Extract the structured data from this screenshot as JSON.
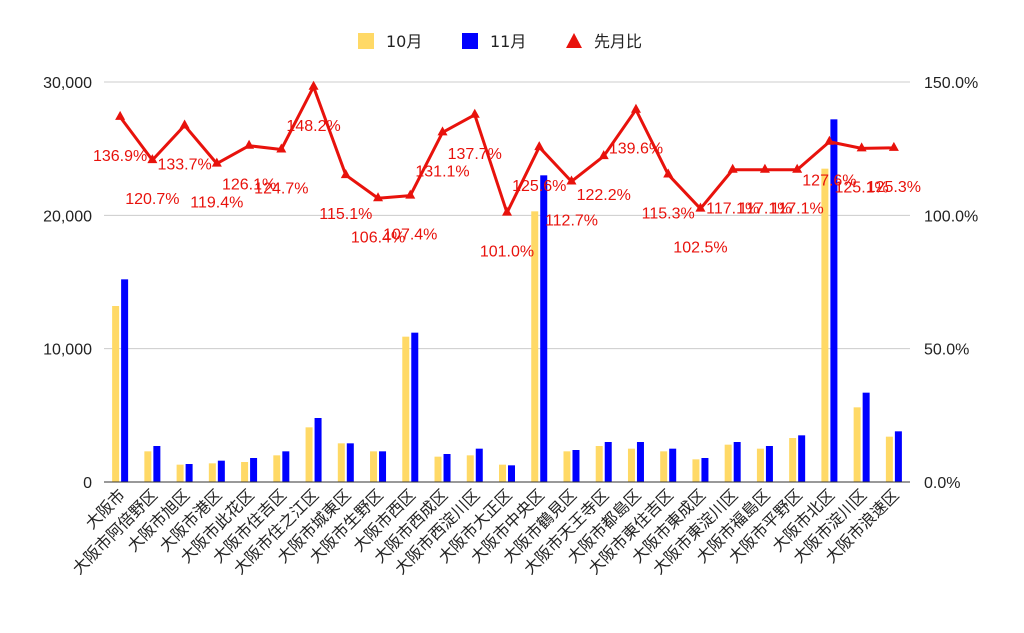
{
  "chart_data": {
    "type": "bar",
    "categories": [
      "大阪市",
      "大阪市阿倍野区",
      "大阪市旭区",
      "大阪市港区",
      "大阪市此花区",
      "大阪市住吉区",
      "大阪市住之江区",
      "大阪市城東区",
      "大阪市生野区",
      "大阪市西区",
      "大阪市西成区",
      "大阪市西淀川区",
      "大阪市大正区",
      "大阪市中央区",
      "大阪市鶴見区",
      "大阪市天王寺区",
      "大阪市都島区",
      "大阪市東住吉区",
      "大阪市東成区",
      "大阪市東淀川区",
      "大阪市福島区",
      "大阪市平野区",
      "大阪市北区",
      "大阪市淀川区",
      "大阪市浪速区"
    ],
    "series": [
      {
        "name": "10月",
        "type": "bar",
        "axis": "left",
        "color": "#ffd966",
        "values": [
          13200,
          2300,
          1300,
          1400,
          1500,
          2000,
          4100,
          2900,
          2300,
          10900,
          1900,
          2000,
          1300,
          20300,
          2300,
          2700,
          2500,
          2300,
          1700,
          2800,
          2500,
          3300,
          23500,
          5600,
          3400
        ]
      },
      {
        "name": "11月",
        "type": "bar",
        "axis": "left",
        "color": "#0000ff",
        "values": [
          15200,
          2700,
          1350,
          1600,
          1800,
          2300,
          4800,
          2900,
          2300,
          11200,
          2100,
          2500,
          1250,
          23000,
          2400,
          3000,
          3000,
          2500,
          1800,
          3000,
          2700,
          3500,
          27200,
          6700,
          3800
        ]
      },
      {
        "name": "先月比",
        "type": "line",
        "axis": "right",
        "color": "#e8120c",
        "values": [
          136.9,
          120.7,
          133.7,
          119.4,
          126.1,
          124.7,
          148.2,
          115.1,
          106.4,
          107.4,
          131.1,
          137.7,
          101.0,
          125.6,
          112.7,
          122.2,
          139.6,
          115.3,
          102.5,
          117.1,
          117.1,
          117.1,
          127.6,
          125.1,
          125.3
        ],
        "labels": [
          "136.9%",
          "120.7%",
          "133.7%",
          "119.4%",
          "126.1%",
          "124.7%",
          "148.2%",
          "115.1%",
          "106.4%",
          "107.4%",
          "131.1%",
          "137.7%",
          "101.0%",
          "125.6%",
          "112.7%",
          "122.2%",
          "139.6%",
          "115.3%",
          "102.5%",
          "117.1%",
          "117.1%",
          "117.1%",
          "127.6%",
          "125.1%",
          "125.3%"
        ]
      }
    ],
    "left_axis": {
      "min": 0,
      "max": 30000,
      "ticks": [
        0,
        10000,
        20000,
        30000
      ],
      "tick_labels": [
        "0",
        "10,000",
        "20,000",
        "30,000"
      ]
    },
    "right_axis": {
      "min": 0,
      "max": 150,
      "ticks": [
        0,
        50,
        100,
        150
      ],
      "tick_labels": [
        "0.0%",
        "50.0%",
        "100.0%",
        "150.0%"
      ]
    },
    "title": "",
    "xlabel": "",
    "ylabel": "",
    "grid": true,
    "legend_position": "top-center"
  }
}
